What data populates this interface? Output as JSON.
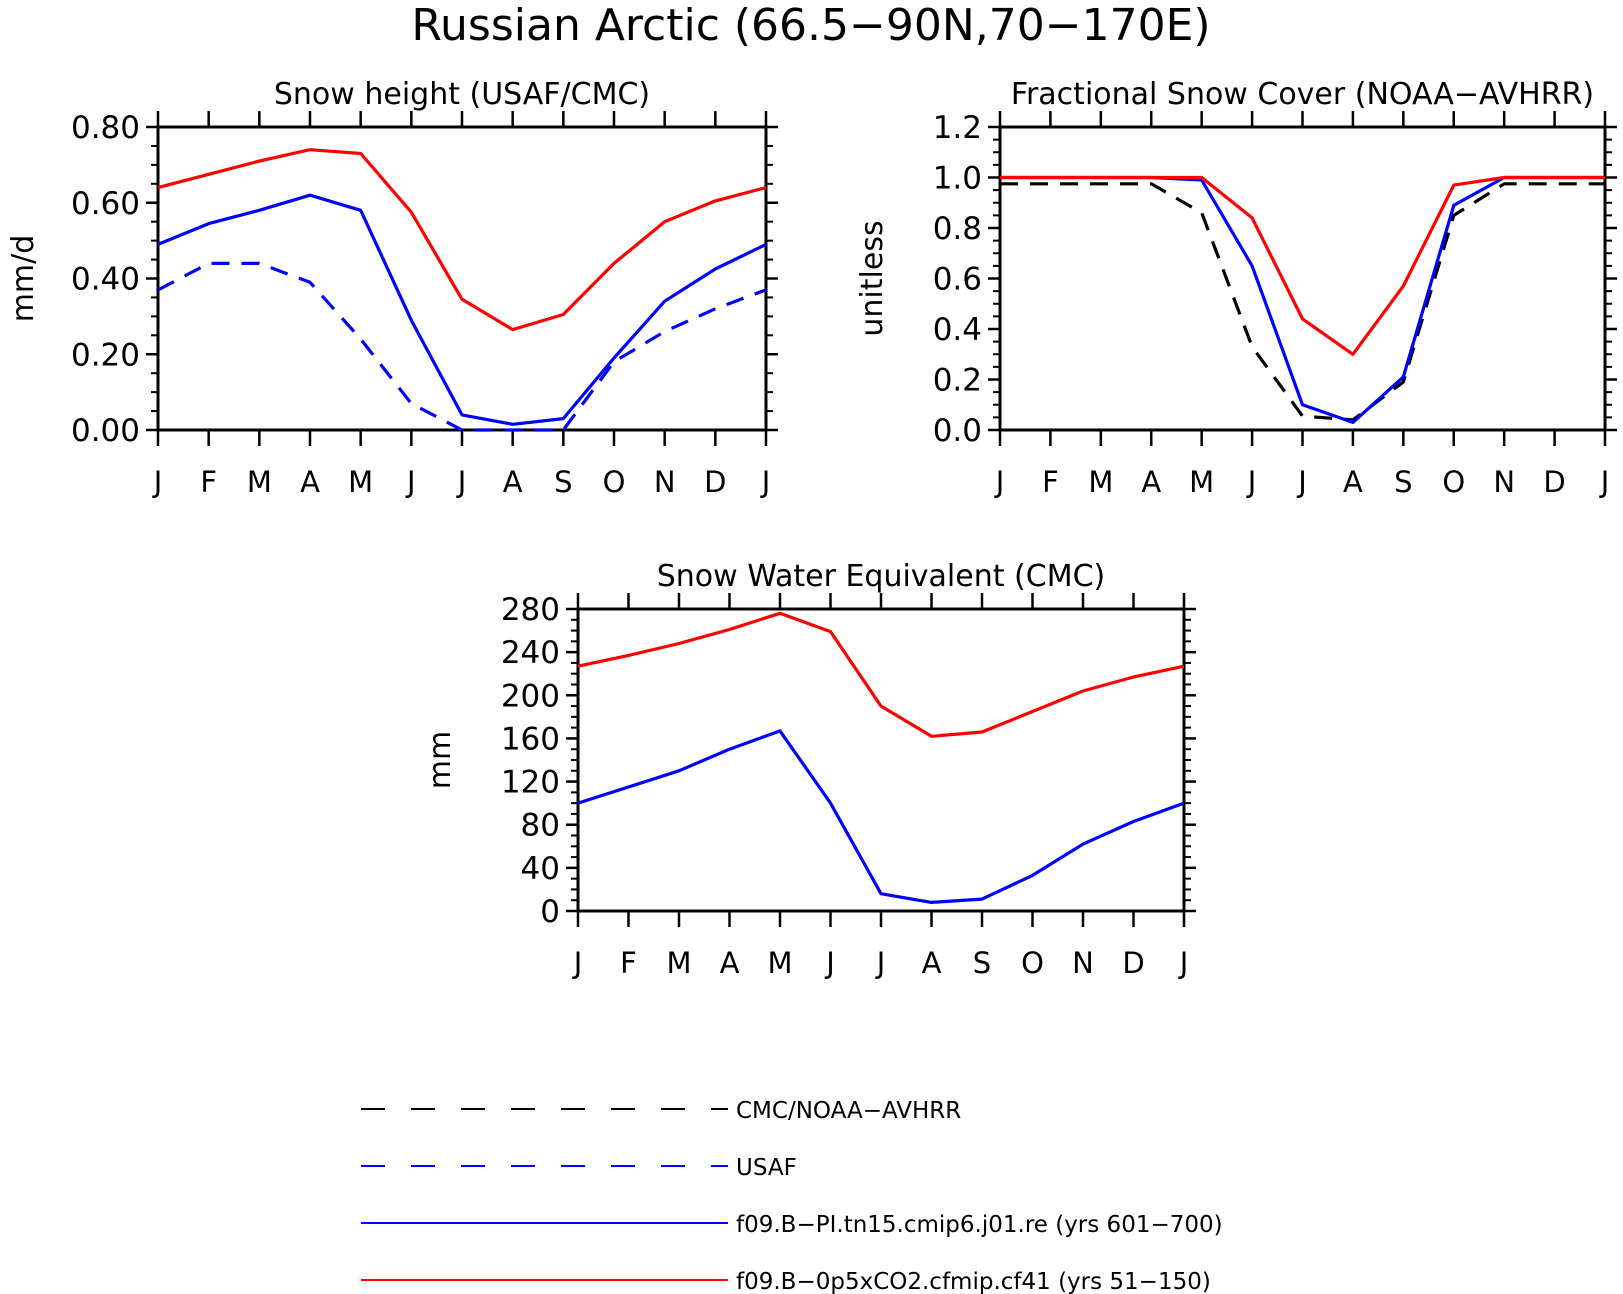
{
  "figure": {
    "title": "Russian Arctic (66.5−90N,70−170E)"
  },
  "months": [
    "J",
    "F",
    "M",
    "A",
    "M",
    "J",
    "J",
    "A",
    "S",
    "O",
    "N",
    "D",
    "J"
  ],
  "legend": [
    {
      "label": "CMC/NOAA−AVHRR",
      "color": "#000000",
      "dashed": true
    },
    {
      "label": "USAF",
      "color": "#0000ff",
      "dashed": true
    },
    {
      "label": "f09.B−PI.tn15.cmip6.j01.re (yrs 601−700)",
      "color": "#0000ff",
      "dashed": false
    },
    {
      "label": "f09.B−0p5xCO2.cfmip.cf41 (yrs 51−150)",
      "color": "#ff0000",
      "dashed": false
    }
  ],
  "chart_data": [
    {
      "type": "line",
      "title": "Snow height (USAF/CMC)",
      "xlabel": "",
      "ylabel": "mm/d",
      "ylim": [
        0,
        0.8
      ],
      "yticks": [
        "0.00",
        "0.20",
        "0.40",
        "0.60",
        "0.80"
      ],
      "ytick_values": [
        0,
        0.2,
        0.4,
        0.6,
        0.8
      ],
      "categories": [
        "J",
        "F",
        "M",
        "A",
        "M",
        "J",
        "J",
        "A",
        "S",
        "O",
        "N",
        "D",
        "J"
      ],
      "series": [
        {
          "name": "USAF",
          "color": "#0000ff",
          "dashed": true,
          "values": [
            0.37,
            0.44,
            0.44,
            0.39,
            0.24,
            0.07,
            0.0,
            0.0,
            0.0,
            0.18,
            0.26,
            0.32,
            0.37
          ]
        },
        {
          "name": "f09.B−PI.tn15.cmip6.j01.re (yrs 601−700)",
          "color": "#0000ff",
          "dashed": false,
          "values": [
            0.49,
            0.545,
            0.58,
            0.62,
            0.58,
            0.29,
            0.04,
            0.015,
            0.03,
            0.19,
            0.34,
            0.425,
            0.49
          ]
        },
        {
          "name": "f09.B−0p5xCO2.cfmip.cf41 (yrs 51−150)",
          "color": "#ff0000",
          "dashed": false,
          "values": [
            0.64,
            0.675,
            0.71,
            0.74,
            0.73,
            0.575,
            0.345,
            0.265,
            0.305,
            0.44,
            0.55,
            0.605,
            0.64
          ]
        }
      ]
    },
    {
      "type": "line",
      "title": "Fractional Snow Cover (NOAA−AVHRR)",
      "xlabel": "",
      "ylabel": "unitless",
      "ylim": [
        0,
        1.2
      ],
      "yticks": [
        "0.0",
        "0.2",
        "0.4",
        "0.6",
        "0.8",
        "1.0",
        "1.2"
      ],
      "ytick_values": [
        0,
        0.2,
        0.4,
        0.6,
        0.8,
        1.0,
        1.2
      ],
      "categories": [
        "J",
        "F",
        "M",
        "A",
        "M",
        "J",
        "J",
        "A",
        "S",
        "O",
        "N",
        "D",
        "J"
      ],
      "series": [
        {
          "name": "CMC/NOAA−AVHRR",
          "color": "#000000",
          "dashed": true,
          "values": [
            0.975,
            0.975,
            0.975,
            0.975,
            0.86,
            0.33,
            0.055,
            0.04,
            0.19,
            0.85,
            0.975,
            0.975,
            0.975
          ]
        },
        {
          "name": "f09.B−PI.tn15.cmip6.j01.re (yrs 601−700)",
          "color": "#0000ff",
          "dashed": false,
          "values": [
            1.0,
            1.0,
            1.0,
            1.0,
            0.99,
            0.65,
            0.1,
            0.03,
            0.21,
            0.89,
            1.0,
            1.0,
            1.0
          ]
        },
        {
          "name": "f09.B−0p5xCO2.cfmip.cf41 (yrs 51−150)",
          "color": "#ff0000",
          "dashed": false,
          "values": [
            1.0,
            1.0,
            1.0,
            1.0,
            1.0,
            0.84,
            0.44,
            0.3,
            0.57,
            0.97,
            1.0,
            1.0,
            1.0
          ]
        }
      ]
    },
    {
      "type": "line",
      "title": "Snow Water Equivalent (CMC)",
      "xlabel": "",
      "ylabel": "mm",
      "ylim": [
        0,
        280
      ],
      "yticks": [
        "0",
        "40",
        "80",
        "120",
        "160",
        "200",
        "240",
        "280"
      ],
      "ytick_values": [
        0,
        40,
        80,
        120,
        160,
        200,
        240,
        280
      ],
      "categories": [
        "J",
        "F",
        "M",
        "A",
        "M",
        "J",
        "J",
        "A",
        "S",
        "O",
        "N",
        "D",
        "J"
      ],
      "series": [
        {
          "name": "f09.B−PI.tn15.cmip6.j01.re (yrs 601−700)",
          "color": "#0000ff",
          "dashed": false,
          "values": [
            100,
            115,
            130,
            150,
            167,
            100,
            16,
            8,
            11,
            33,
            62,
            83,
            100
          ]
        },
        {
          "name": "f09.B−0p5xCO2.cfmip.cf41 (yrs 51−150)",
          "color": "#ff0000",
          "dashed": false,
          "values": [
            227,
            237,
            248,
            261,
            276,
            259,
            190,
            162,
            166,
            185,
            204,
            217,
            227
          ]
        }
      ]
    }
  ]
}
